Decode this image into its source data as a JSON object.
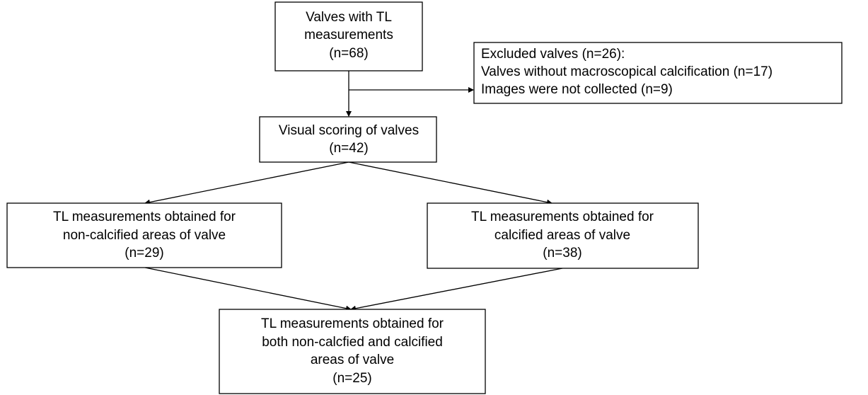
{
  "nodes": [
    {
      "lines": [
        "Valves with TL",
        "measurements",
        "(n=68)"
      ]
    },
    {
      "lines": [
        "Excluded valves (n=26):",
        "Valves without macroscopical calcification (n=17)",
        "Images were not collected (n=9)"
      ]
    },
    {
      "lines": [
        "Visual scoring of valves",
        "(n=42)"
      ]
    },
    {
      "lines": [
        "TL measurements obtained for",
        "non-calcified areas of valve",
        "(n=29)"
      ]
    },
    {
      "lines": [
        "TL measurements obtained for",
        "calcified areas of valve",
        "(n=38)"
      ]
    },
    {
      "lines": [
        "TL measurements obtained for",
        "both non-calcfied and calcified",
        "areas of valve",
        "(n=25)"
      ]
    }
  ]
}
